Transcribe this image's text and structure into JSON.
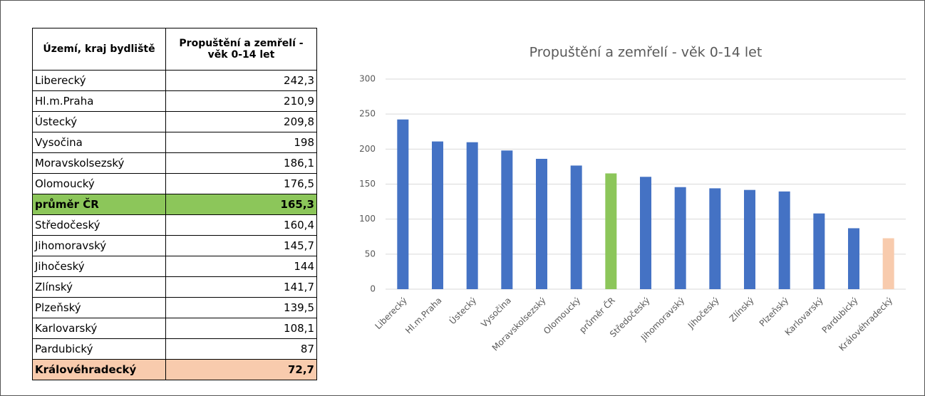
{
  "table": {
    "header": [
      "Území, kraj bydliště",
      "Propuštění a zemřelí - věk 0-14 let"
    ],
    "rows": [
      {
        "name": "Liberecký",
        "value": "242,3"
      },
      {
        "name": "Hl.m.Praha",
        "value": "210,9"
      },
      {
        "name": "Ústecký",
        "value": "209,8"
      },
      {
        "name": "Vysočina",
        "value": "198"
      },
      {
        "name": "Moravskolsezský",
        "value": "186,1"
      },
      {
        "name": "Olomoucký",
        "value": "176,5"
      },
      {
        "name": "průměr ČR",
        "value": "165,3",
        "fill": "#8cc65a"
      },
      {
        "name": "Středočeský",
        "value": "160,4"
      },
      {
        "name": "Jihomoravský",
        "value": "145,7"
      },
      {
        "name": "Jihočeský",
        "value": "144"
      },
      {
        "name": "Zlínský",
        "value": "141,7"
      },
      {
        "name": "Plzeňský",
        "value": "139,5"
      },
      {
        "name": "Karlovarský",
        "value": "108,1"
      },
      {
        "name": "Pardubický",
        "value": "87"
      },
      {
        "name": "Královéhradecký",
        "value": "72,7",
        "fill": "#f8cbad"
      }
    ]
  },
  "chart_data": {
    "type": "bar",
    "title": "Propuštění a zemřelí - věk 0-14 let",
    "categories": [
      "Liberecký",
      "Hl.m.Praha",
      "Ústecký",
      "Vysočina",
      "Moravskolsezský",
      "Olomoucký",
      "průměr ČR",
      "Středočeský",
      "Jihomoravský",
      "Jihočeský",
      "Zlínský",
      "Plzeňský",
      "Karlovarský",
      "Pardubický",
      "Královéhradecký"
    ],
    "values": [
      242.3,
      210.9,
      209.8,
      198,
      186.1,
      176.5,
      165.3,
      160.4,
      145.7,
      144,
      141.7,
      139.5,
      108.1,
      87,
      72.7
    ],
    "colors": [
      "#4472c4",
      "#4472c4",
      "#4472c4",
      "#4472c4",
      "#4472c4",
      "#4472c4",
      "#8cc65a",
      "#4472c4",
      "#4472c4",
      "#4472c4",
      "#4472c4",
      "#4472c4",
      "#4472c4",
      "#4472c4",
      "#f8cbad"
    ],
    "ylim": [
      0,
      300
    ],
    "yticks": [
      0,
      50,
      100,
      150,
      200,
      250,
      300
    ],
    "grid": true
  }
}
